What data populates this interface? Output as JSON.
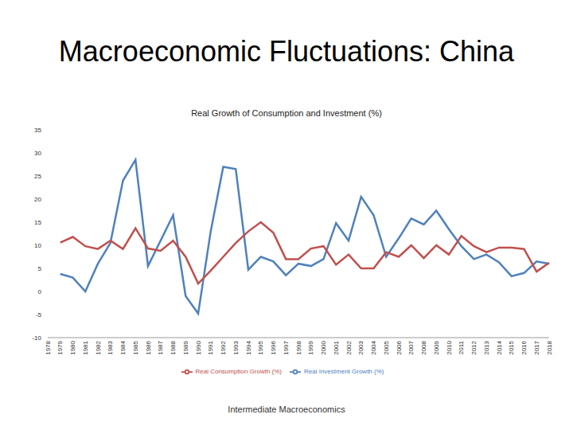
{
  "slide_title": "Macroeconomic Fluctuations: China",
  "footer": "Intermediate Macroeconomics",
  "chart_data": {
    "type": "line",
    "title": "Real Growth of Consumption and Investment (%)",
    "categories": [
      "1978",
      "1979",
      "1980",
      "1981",
      "1982",
      "1983",
      "1984",
      "1985",
      "1986",
      "1987",
      "1988",
      "1989",
      "1990",
      "1991",
      "1992",
      "1993",
      "1994",
      "1995",
      "1996",
      "1997",
      "1998",
      "1999",
      "2000",
      "2001",
      "2002",
      "2003",
      "2004",
      "2005",
      "2006",
      "2007",
      "2008",
      "2009",
      "2010",
      "2011",
      "2012",
      "2013",
      "2014",
      "2015",
      "2016",
      "2017",
      "2018"
    ],
    "series": [
      {
        "name": "Real Investment Growth (%)",
        "color": "#4f81bd",
        "values": [
          null,
          3.8,
          3,
          0,
          6,
          10.5,
          24,
          28.5,
          5.5,
          11,
          16.5,
          -1,
          -4.8,
          13,
          27,
          26.5,
          4.7,
          7.5,
          6.5,
          3.5,
          6,
          5.5,
          7,
          14.8,
          11,
          20.5,
          16.5,
          7.5,
          11.5,
          15.8,
          14.5,
          17.5,
          13.5,
          9.8,
          7,
          8,
          6.3,
          3.3,
          4,
          6.5,
          6
        ]
      },
      {
        "name": "Real Consumption Growth (%)",
        "color": "#c0504d",
        "values": [
          null,
          10.6,
          11.8,
          9.8,
          9.2,
          11,
          9.2,
          13.7,
          9.3,
          8.8,
          11,
          7.5,
          1.7,
          4.5,
          7.5,
          10.5,
          13,
          15,
          12.7,
          7,
          7,
          9.3,
          9.8,
          5.8,
          8,
          5,
          5,
          8.5,
          7.5,
          10,
          7.2,
          10,
          8,
          12,
          9.8,
          8.5,
          9.5,
          9.5,
          9.2,
          4.3,
          6.2
        ]
      }
    ],
    "ylim": [
      -10,
      35
    ],
    "yticks": [
      -10,
      -5,
      0,
      5,
      10,
      15,
      20,
      25,
      30,
      35
    ],
    "grid": false,
    "legend": "bottom"
  }
}
